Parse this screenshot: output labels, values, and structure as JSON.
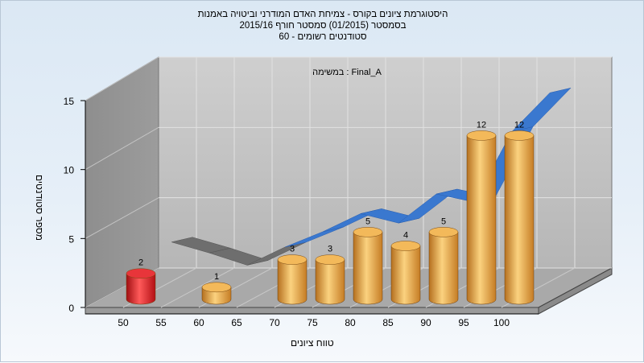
{
  "title_lines": [
    "היסטוגרמת ציונים בקורס - צמיחת האדם המודרני וביטויה באמנות",
    "בסמסטר  (01/2015)  סמסטר חורף 2015/16",
    "סטודנטים רשומים - 60"
  ],
  "chart_data": {
    "type": "bar",
    "subtitle": "במשימה : Final_A",
    "xlabel": "טווח ציונים",
    "ylabel": "מספר סטודנטים",
    "x_tick_labels": [
      "50",
      "55",
      "60",
      "65",
      "70",
      "75",
      "80",
      "85",
      "90",
      "95",
      "100"
    ],
    "y_tick_labels": [
      "0",
      "5",
      "10",
      "15"
    ],
    "ylim": [
      0,
      15
    ],
    "grid": true,
    "categories": [
      "50",
      "55",
      "60",
      "65",
      "70",
      "75",
      "80",
      "85",
      "90",
      "95",
      "100"
    ],
    "values": [
      2,
      0,
      1,
      0,
      3,
      3,
      5,
      4,
      5,
      12,
      12
    ],
    "bar_labels": [
      "2",
      "",
      "1",
      "",
      "3",
      "3",
      "5",
      "4",
      "5",
      "12",
      "12"
    ],
    "highlight_colors": [
      "#e3242b",
      null,
      "#e8a640",
      null,
      "#e8a640",
      "#e8a640",
      "#e8a640",
      "#e8a640",
      "#e8a640",
      "#e8a640",
      "#e8a640"
    ],
    "trend_values": [
      2.7,
      2.0,
      1.2,
      2.6,
      3.8,
      5.2,
      4.6,
      6.8,
      6.3,
      11.5,
      14.4
    ]
  }
}
